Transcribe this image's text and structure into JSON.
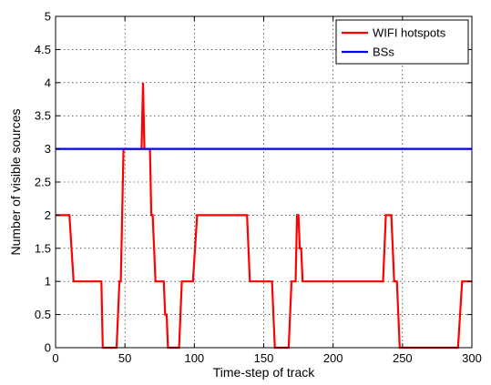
{
  "chart_data": {
    "type": "line",
    "title": "",
    "xlabel": "Time-step of track",
    "ylabel": "Number of visible sources",
    "xlim": [
      0,
      300
    ],
    "ylim": [
      0,
      5
    ],
    "xticks": [
      0,
      50,
      100,
      150,
      200,
      250,
      300
    ],
    "xtick_labels": [
      "0",
      "50",
      "100",
      "150",
      "200",
      "250",
      "300"
    ],
    "yticks": [
      0,
      0.5,
      1,
      1.5,
      2,
      2.5,
      3,
      3.5,
      4,
      4.5,
      5
    ],
    "ytick_labels": [
      "0",
      "0.5",
      "1",
      "1.5",
      "2",
      "2.5",
      "3",
      "3.5",
      "4",
      "4.5",
      "5"
    ],
    "grid": true,
    "legend_position": "top-right",
    "series": [
      {
        "name": "WIFI hotspots",
        "color": "#ff0000",
        "x": [
          0,
          10,
          13,
          33,
          34,
          44,
          46,
          47,
          49,
          62,
          63,
          64,
          65,
          66,
          68,
          69,
          70,
          72,
          73,
          78,
          79,
          80,
          81,
          89,
          91,
          99,
          102,
          138,
          140,
          156,
          158,
          168,
          170,
          173,
          174,
          175,
          176,
          177,
          178,
          179,
          180,
          236,
          238,
          242,
          244,
          246,
          248,
          290,
          293,
          300
        ],
        "y": [
          2,
          2,
          1,
          1,
          0,
          0,
          1,
          1,
          3,
          3,
          4,
          3,
          3,
          3,
          3,
          2,
          2,
          1,
          1,
          1,
          0.5,
          0.5,
          0,
          0,
          1,
          1,
          2,
          2,
          1,
          1,
          0,
          0,
          1,
          1,
          2,
          2,
          1.5,
          1.5,
          1,
          1,
          1,
          1,
          2,
          2,
          1,
          1,
          0,
          0,
          1,
          1
        ]
      },
      {
        "name": "BSs",
        "color": "#0000ff",
        "x": [
          0,
          300
        ],
        "y": [
          3,
          3
        ]
      }
    ]
  }
}
